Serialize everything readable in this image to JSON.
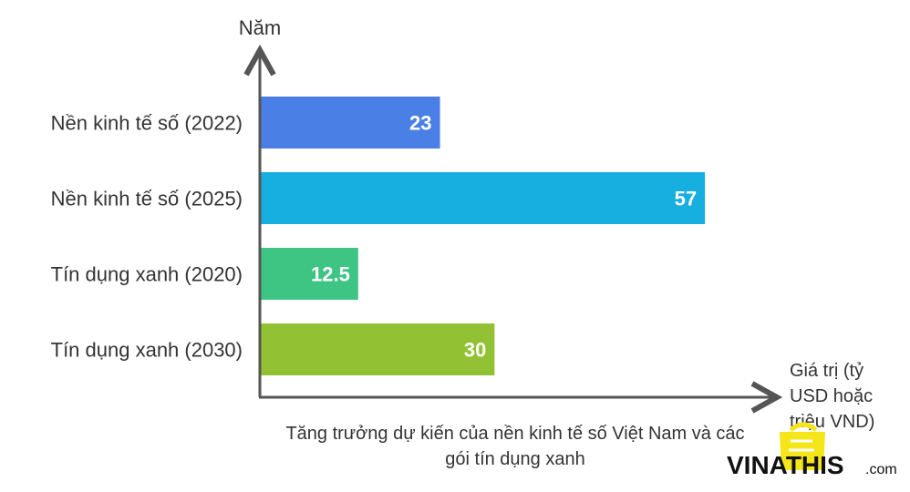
{
  "chart_data": {
    "type": "bar",
    "orientation": "horizontal",
    "categories": [
      "Nền kinh tế số (2022)",
      "Nền kinh tế số (2025)",
      "Tín dụng xanh (2020)",
      "Tín dụng xanh (2030)"
    ],
    "values": [
      23,
      57,
      12.5,
      30
    ],
    "value_labels": [
      "23",
      "57",
      "12.5",
      "30"
    ],
    "colors": [
      "#4a80e6",
      "#17aee0",
      "#3ec483",
      "#92c234"
    ],
    "title": "Tăng trưởng dự kiến của nền kinh tế số Việt Nam và các gói tín dụng xanh",
    "ylabel": "Năm",
    "xlabel": "Giá trị (tỷ USD hoặc triệu VND)",
    "xlim": [
      0,
      66
    ],
    "grid": false
  },
  "watermark": {
    "text_main": "VINATHIS",
    "text_suffix": ".com",
    "color": "#f5e61a"
  }
}
